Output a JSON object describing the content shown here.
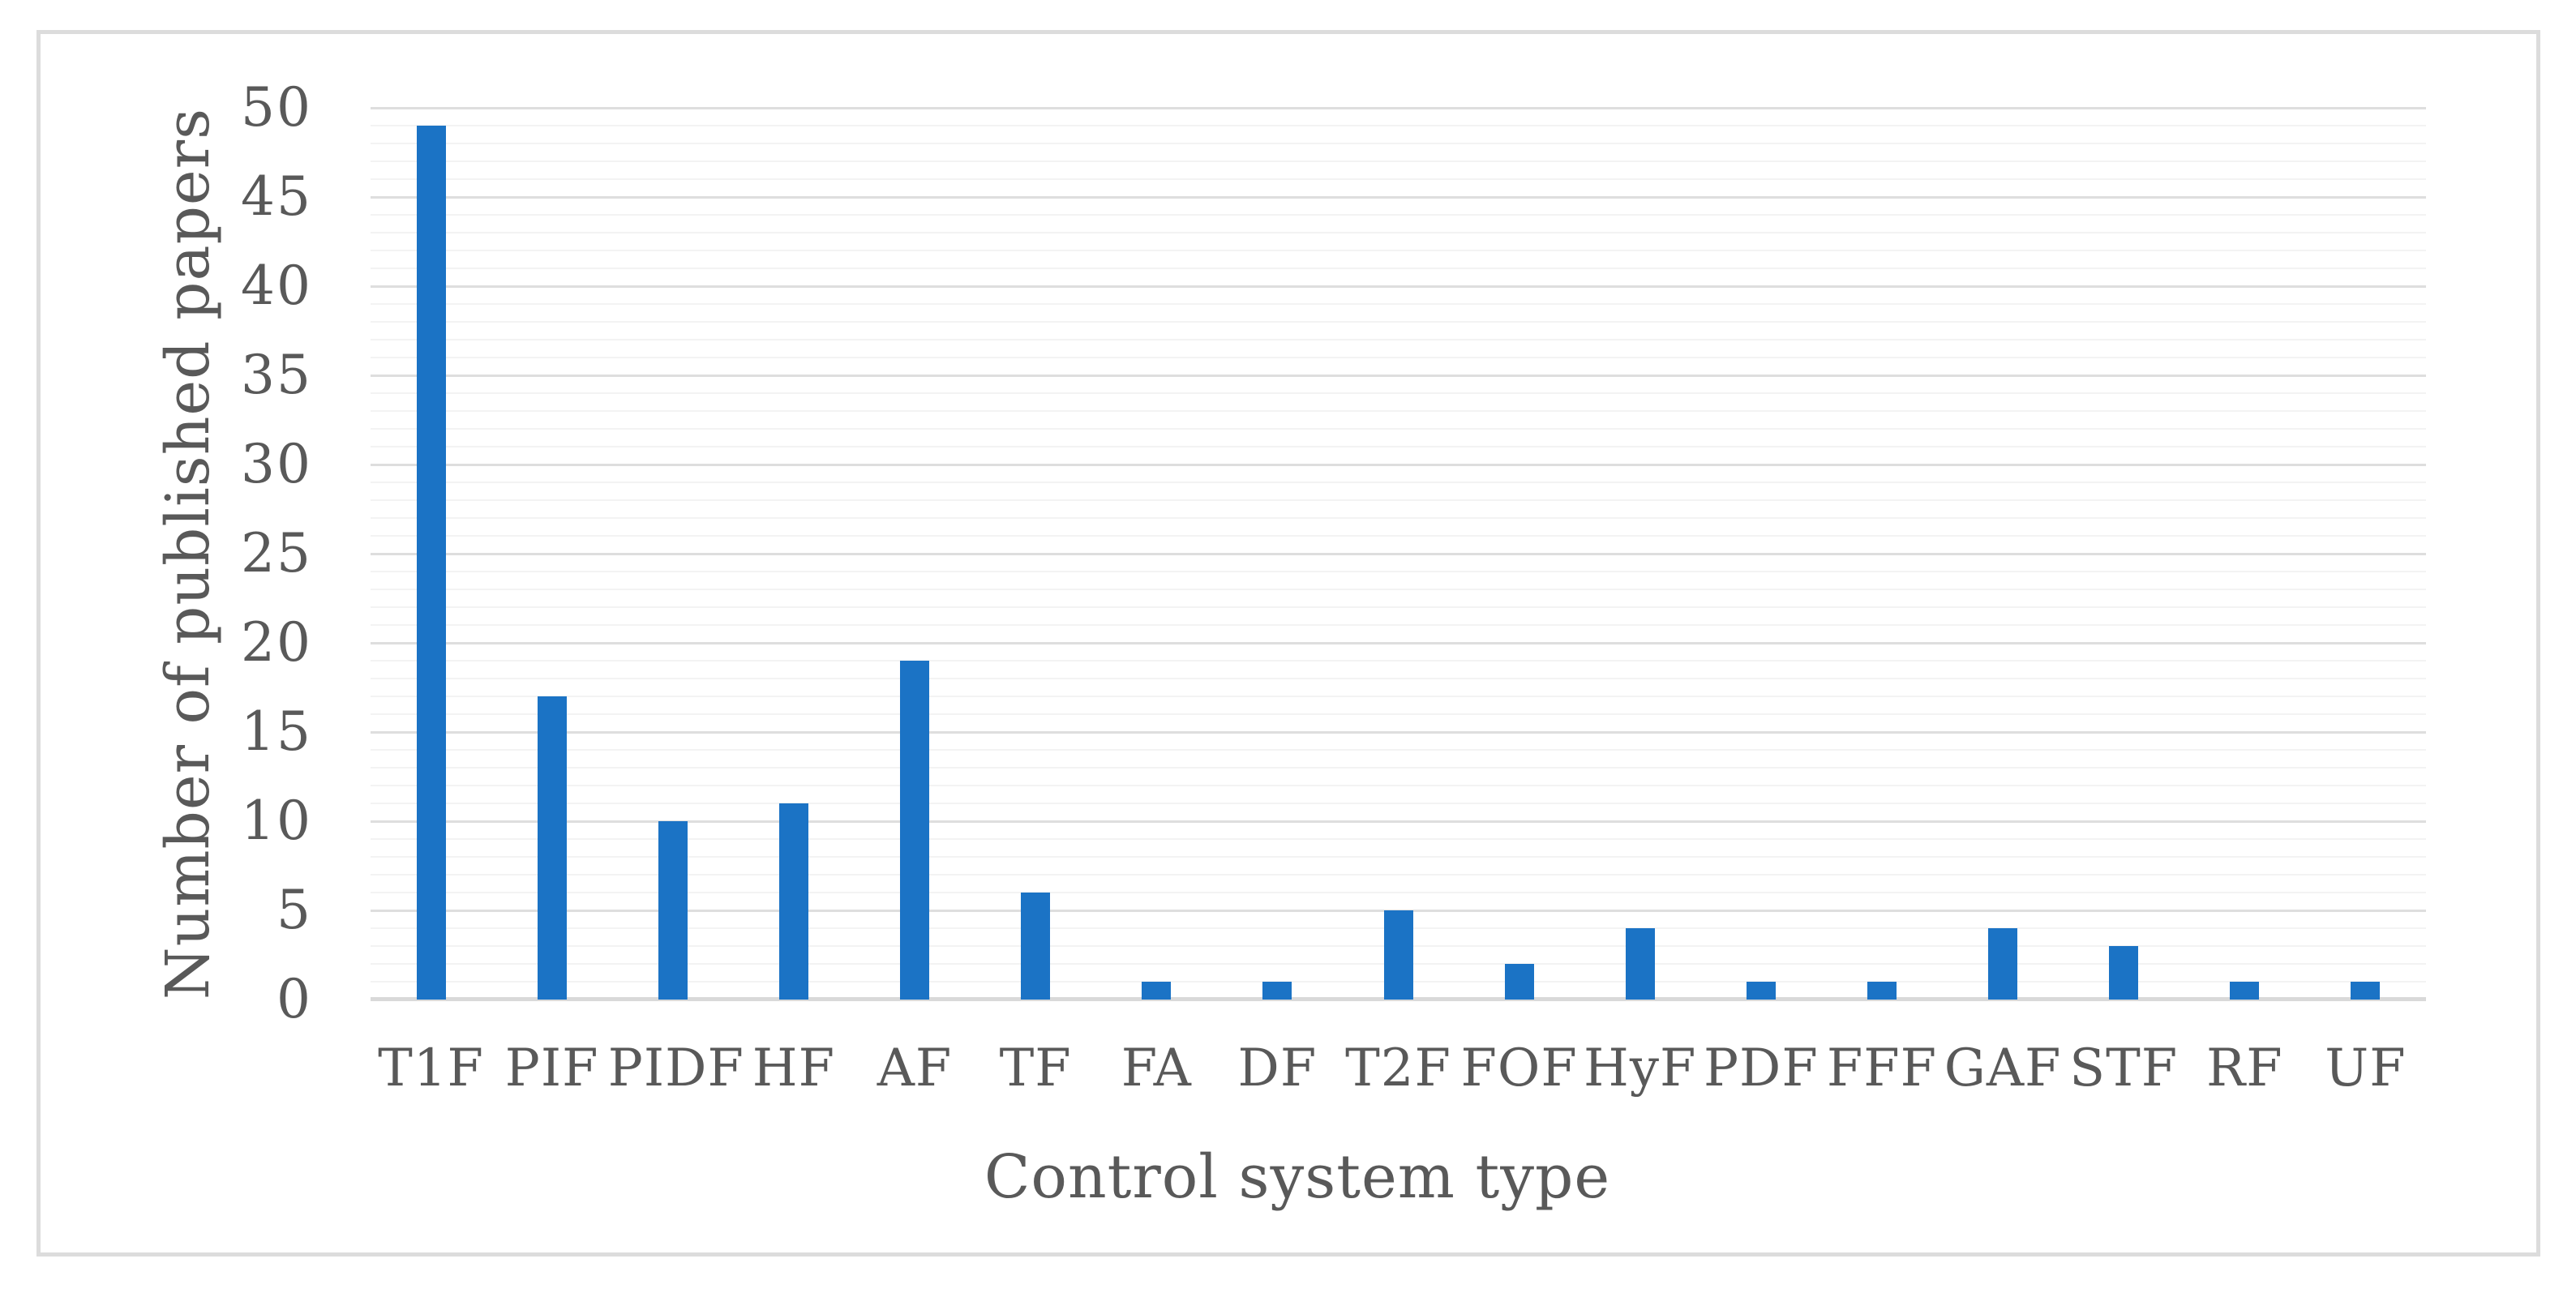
{
  "figure": {
    "background": "#ffffff",
    "border_color": "#dcdcdc",
    "text_color": "#595959"
  },
  "chart_data": {
    "type": "bar",
    "title": "",
    "categories": [
      "T1F",
      "PIF",
      "PIDF",
      "HF",
      "AF",
      "TF",
      "FA",
      "DF",
      "T2F",
      "FOF",
      "HyF",
      "PDF",
      "FFF",
      "GAF",
      "STF",
      "RF",
      "UF"
    ],
    "values": [
      49,
      17,
      10,
      11,
      19,
      6,
      1,
      1,
      5,
      2,
      4,
      1,
      1,
      4,
      3,
      1,
      1
    ],
    "xlabel": "Control system type",
    "ylabel": "Number of published papers",
    "ylim": [
      0,
      50
    ],
    "yticks": [
      0,
      5,
      10,
      15,
      20,
      25,
      30,
      35,
      40,
      45,
      50
    ],
    "ytick_interval": 5,
    "minor_grid_interval": 1,
    "grid": "horizontal major every 5 with minor lines every 1",
    "legend": "none",
    "bar_color": "#1b73c5",
    "gridline_major_color": "#dedede",
    "gridline_minor_color": "#f3f3f3",
    "axis_line_color": "#d9d9d9"
  }
}
